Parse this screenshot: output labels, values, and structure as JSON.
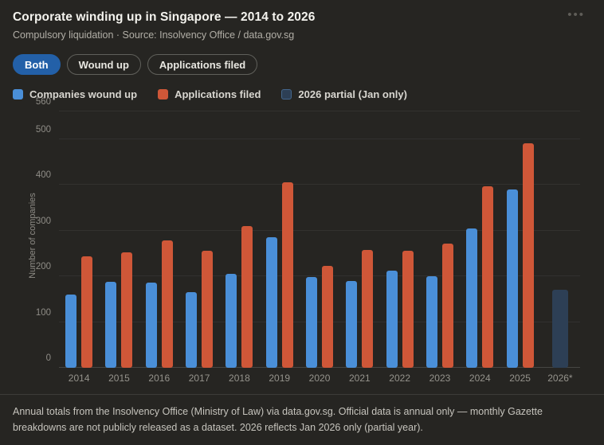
{
  "header": {
    "title": "Corporate winding up in Singapore — 2014 to 2026",
    "subtitle": "Compulsory liquidation · Source: Insolvency Office / data.gov.sg",
    "menu_icon": "ellipsis-horizontal",
    "menu_glyph": "•••"
  },
  "filters": [
    {
      "label": "Both",
      "active": true
    },
    {
      "label": "Wound up",
      "active": false
    },
    {
      "label": "Applications filed",
      "active": false
    }
  ],
  "legend": [
    {
      "label": "Companies wound up",
      "color": "#4a8fd8",
      "style": "solid"
    },
    {
      "label": "Applications filed",
      "color": "#cf5738",
      "style": "solid"
    },
    {
      "label": "2026 partial (Jan only)",
      "color": "#2d3f55",
      "style": "outlined",
      "border_color": "#44668c"
    }
  ],
  "chart_data": {
    "type": "bar",
    "title": "Corporate winding up in Singapore — 2014 to 2026",
    "xlabel": "",
    "ylabel": "Number of companies",
    "ylim": [
      0,
      560
    ],
    "yticks": [
      0,
      100,
      200,
      300,
      400,
      500,
      560
    ],
    "grid": true,
    "legend_position": "top",
    "categories": [
      "2014",
      "2015",
      "2016",
      "2017",
      "2018",
      "2019",
      "2020",
      "2021",
      "2022",
      "2023",
      "2024",
      "2025",
      "2026*"
    ],
    "series": [
      {
        "name": "Companies wound up",
        "color": "#4a8fd8",
        "values": [
          160,
          187,
          186,
          166,
          205,
          285,
          199,
          189,
          213,
          200,
          305,
          390,
          null
        ]
      },
      {
        "name": "Applications filed",
        "color": "#cf5738",
        "values": [
          244,
          253,
          278,
          255,
          310,
          405,
          222,
          258,
          255,
          271,
          397,
          490,
          null
        ]
      },
      {
        "name": "2026 partial (Jan only)",
        "color": "#2d3f55",
        "values": [
          null,
          null,
          null,
          null,
          null,
          null,
          null,
          null,
          null,
          null,
          null,
          null,
          170
        ]
      }
    ]
  },
  "footer": {
    "note": "Annual totals from the Insolvency Office (Ministry of Law) via data.gov.sg. Official data is annual only — monthly Gazette breakdowns are not publicly released as a dataset. 2026 reflects Jan 2026 only (partial year)."
  }
}
